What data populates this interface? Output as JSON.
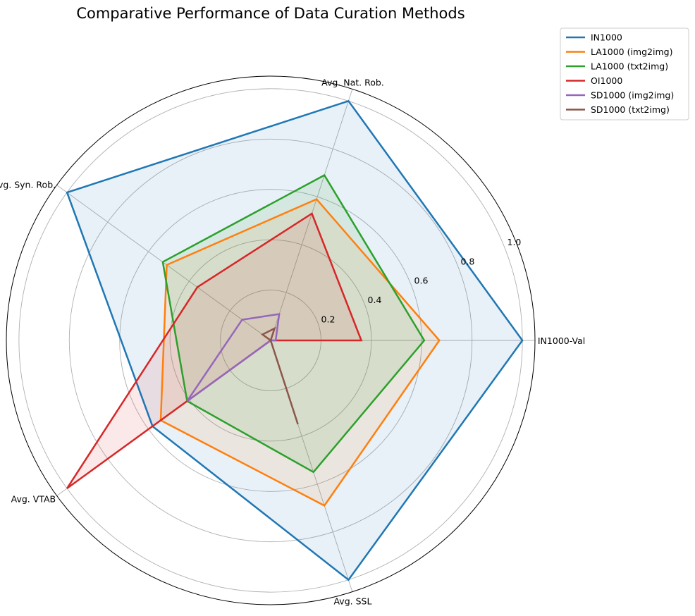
{
  "chart_data": {
    "type": "radar",
    "title": "Comparative Performance of Data Curation Methods",
    "axes": [
      "IN1000-Val",
      "Avg. Nat. Rob.",
      "Avg. Syn. Rob.",
      "Avg. VTAB",
      "Avg. SSL"
    ],
    "rlim": [
      0,
      1.05
    ],
    "r_ticks": [
      0.2,
      0.4,
      0.6,
      0.8,
      1.0
    ],
    "r_tick_labels": [
      "0.2",
      "0.4",
      "0.6",
      "0.8",
      "1.0"
    ],
    "grid": true,
    "legend_position": "upper-right outside",
    "series": [
      {
        "name": "IN1000",
        "color": "#1f77b4",
        "values": [
          1.0,
          1.0,
          1.0,
          0.58,
          1.0
        ],
        "fill": true
      },
      {
        "name": "LA1000 (img2img)",
        "color": "#ff7f0e",
        "values": [
          0.67,
          0.59,
          0.51,
          0.54,
          0.69
        ],
        "fill": true
      },
      {
        "name": "LA1000 (txt2img)",
        "color": "#2ca02c",
        "values": [
          0.61,
          0.69,
          0.53,
          0.41,
          0.55
        ],
        "fill": true
      },
      {
        "name": "OI1000",
        "color": "#d62728",
        "values": [
          0.36,
          0.53,
          0.36,
          1.0,
          0.0
        ],
        "fill": true
      },
      {
        "name": "SD1000 (img2img)",
        "color": "#9467bd",
        "values": [
          0.02,
          0.11,
          0.14,
          0.41,
          0.0
        ],
        "fill": false
      },
      {
        "name": "SD1000 (txt2img)",
        "color": "#8c564b",
        "values": [
          0.0,
          0.05,
          0.04,
          0.0,
          0.35
        ],
        "fill": false
      }
    ]
  }
}
